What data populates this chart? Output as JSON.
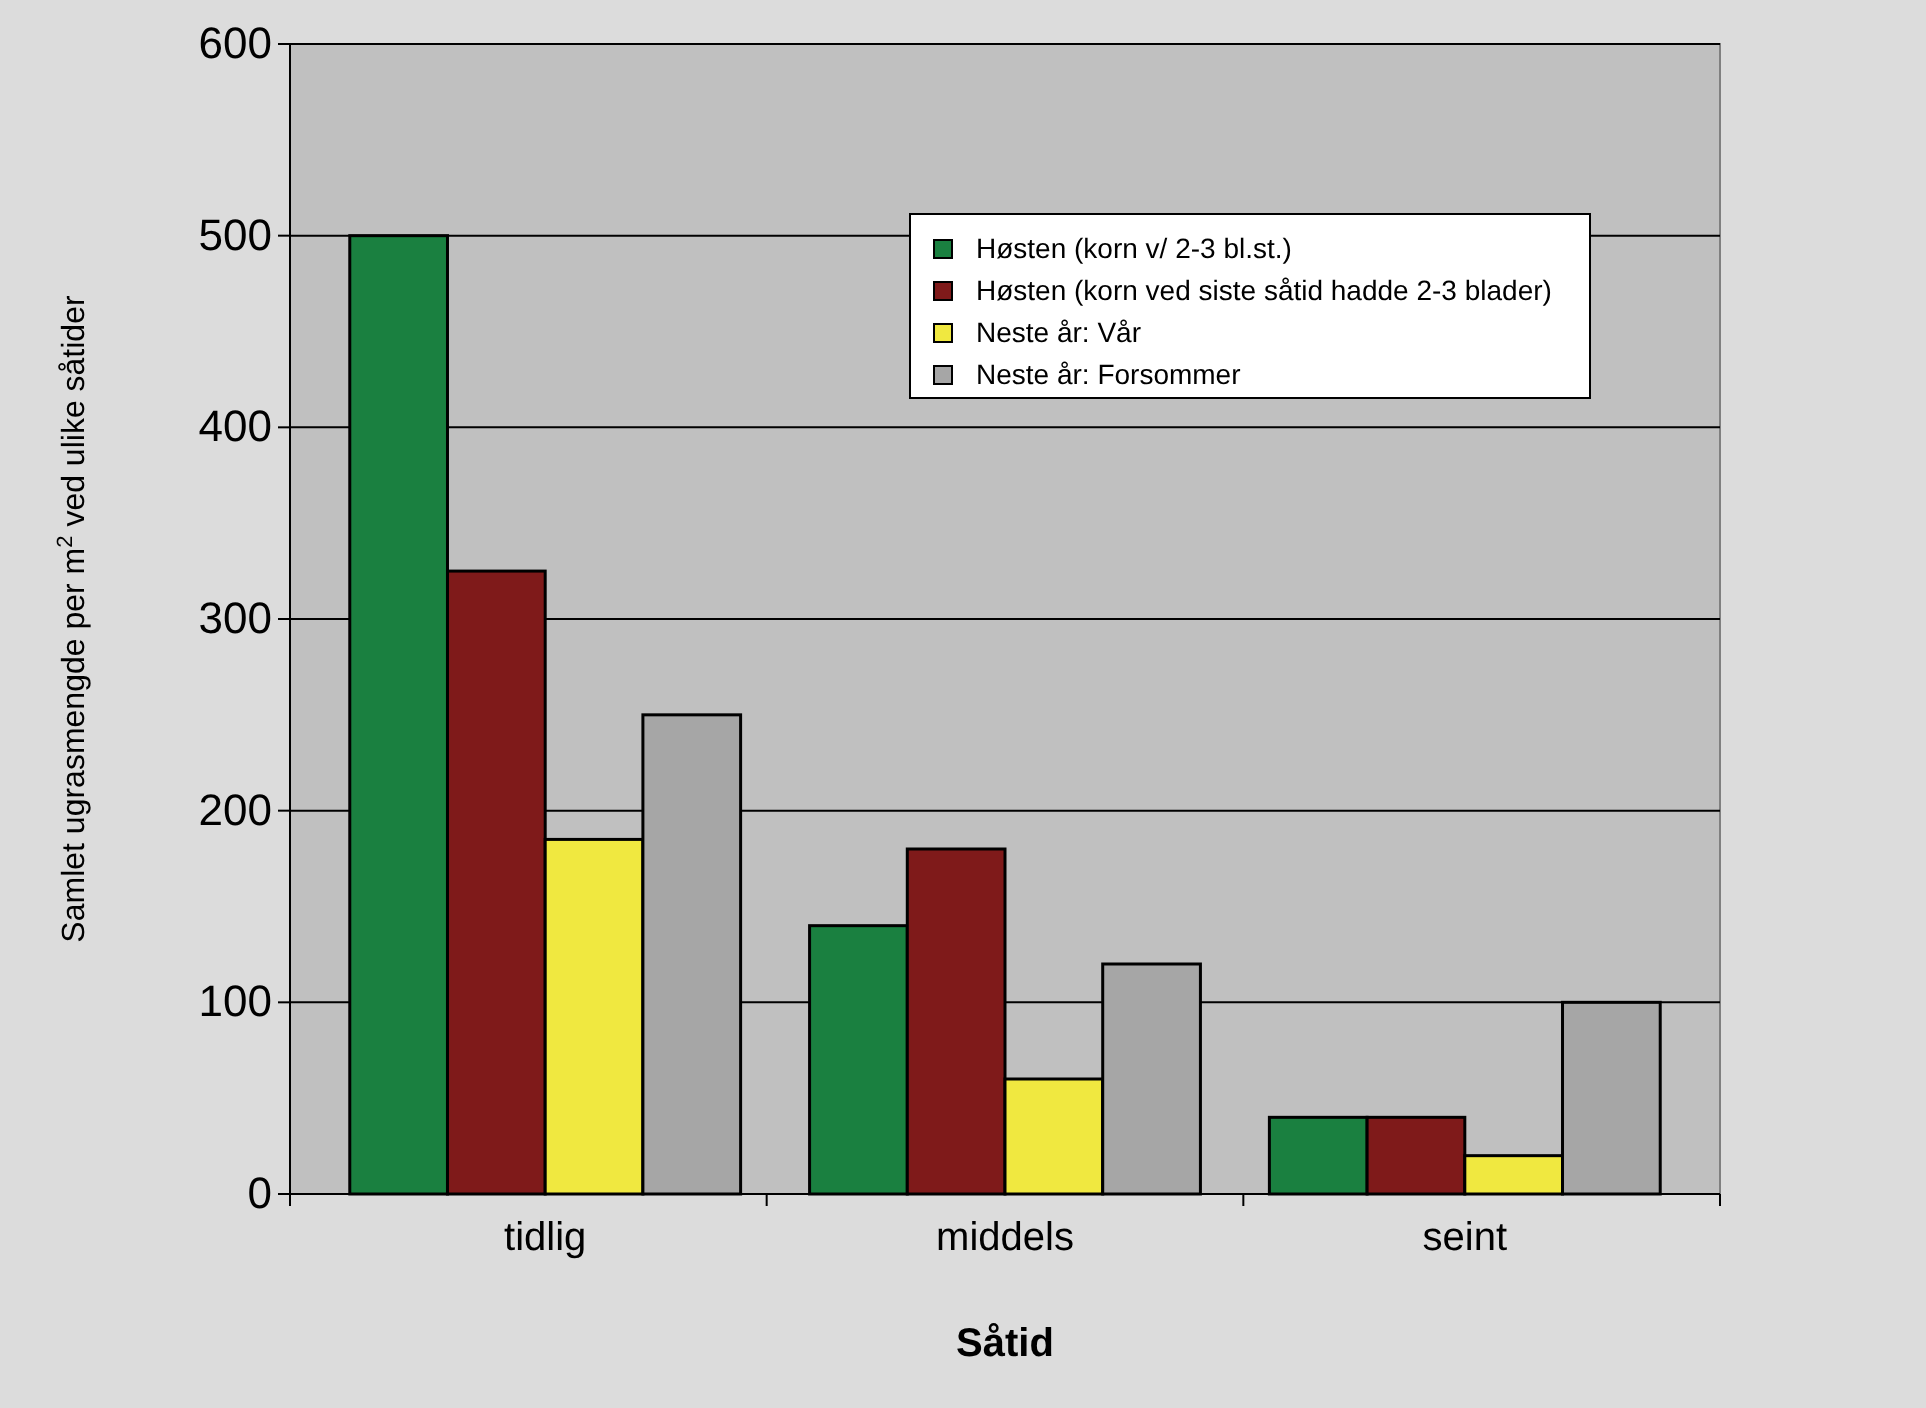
{
  "chart_data": {
    "type": "bar",
    "xlabel": "Såtid",
    "ylabel": "Samlet ugrasmengde per m$^{2}$ ved ulike såtider",
    "categories": [
      "tidlig",
      "middels",
      "seint"
    ],
    "series": [
      {
        "name": "Høsten (korn v/ 2-3 bl.st.)",
        "color": "#1a8040",
        "values": [
          500,
          140,
          40
        ]
      },
      {
        "name": "Høsten (korn ved siste såtid hadde 2-3 blader)",
        "color": "#7f1a1a",
        "values": [
          325,
          180,
          40
        ]
      },
      {
        "name": "Neste år: Vår",
        "color": "#f0e840",
        "values": [
          185,
          60,
          20
        ]
      },
      {
        "name": "Neste år: Forsommer",
        "color": "#a6a6a6",
        "values": [
          250,
          120,
          100
        ]
      }
    ],
    "ylim": [
      0,
      600
    ],
    "yticks": [
      0,
      100,
      200,
      300,
      400,
      500,
      600
    ],
    "grid": "y",
    "legend": "top right"
  }
}
